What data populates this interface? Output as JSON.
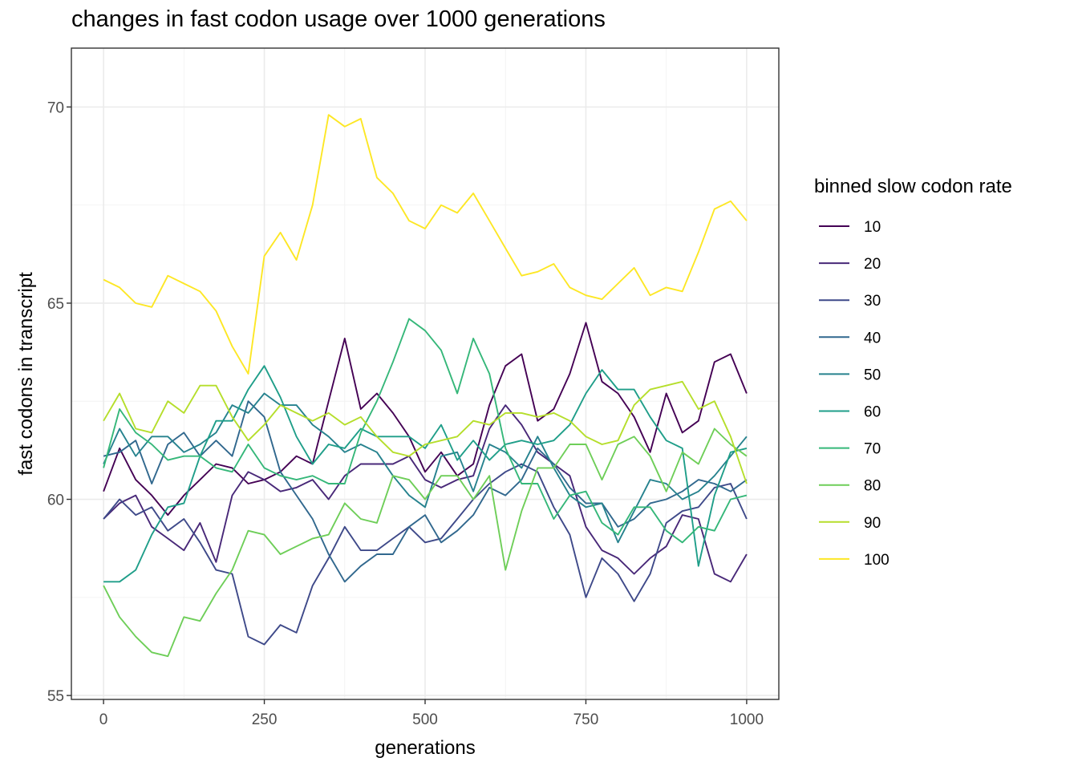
{
  "chart_data": {
    "type": "line",
    "title": "changes in fast codon usage over 1000 generations",
    "xlabel": "generations",
    "ylabel": "fast codons in transcript",
    "xlim": [
      -50,
      1050
    ],
    "ylim": [
      54.9,
      71.5
    ],
    "x_ticks": [
      0,
      250,
      500,
      750,
      1000
    ],
    "y_ticks": [
      55,
      60,
      65,
      70
    ],
    "grid": true,
    "legend": {
      "title": "binned slow codon rate",
      "placement": "right"
    },
    "x": [
      0,
      25,
      50,
      75,
      100,
      125,
      150,
      175,
      200,
      225,
      250,
      275,
      300,
      325,
      350,
      375,
      400,
      425,
      450,
      475,
      500,
      525,
      550,
      575,
      600,
      625,
      650,
      675,
      700,
      725,
      750,
      775,
      800,
      825,
      850,
      875,
      900,
      925,
      950,
      975,
      1000
    ],
    "series": [
      {
        "name": "10",
        "color": "#440154",
        "values": [
          60.2,
          61.3,
          60.5,
          60.1,
          59.6,
          60.1,
          60.5,
          60.9,
          60.8,
          60.4,
          60.5,
          60.7,
          61.1,
          60.9,
          62.5,
          64.1,
          62.3,
          62.7,
          62.2,
          61.6,
          60.7,
          61.2,
          60.6,
          60.9,
          62.4,
          63.4,
          63.7,
          62.0,
          62.3,
          63.2,
          64.5,
          63.0,
          62.7,
          62.1,
          61.2,
          62.7,
          61.7,
          62.0,
          63.5,
          63.7,
          62.7
        ]
      },
      {
        "name": "20",
        "color": "#482878",
        "values": [
          59.5,
          59.9,
          60.1,
          59.3,
          59.0,
          58.7,
          59.4,
          58.4,
          60.1,
          60.7,
          60.5,
          60.2,
          60.3,
          60.5,
          60.0,
          60.6,
          60.9,
          60.9,
          60.9,
          61.1,
          60.5,
          60.3,
          60.5,
          60.6,
          61.8,
          62.4,
          61.9,
          61.2,
          60.9,
          60.6,
          59.3,
          58.7,
          58.5,
          58.1,
          58.5,
          58.8,
          59.6,
          59.5,
          58.1,
          57.9,
          58.6
        ]
      },
      {
        "name": "30",
        "color": "#3e4989",
        "values": [
          59.5,
          60.0,
          59.6,
          59.8,
          59.2,
          59.5,
          58.9,
          58.2,
          58.1,
          56.5,
          56.3,
          56.8,
          56.6,
          57.8,
          58.5,
          59.3,
          58.7,
          58.7,
          59.0,
          59.3,
          58.9,
          59.0,
          59.5,
          60.0,
          60.4,
          60.7,
          60.9,
          60.7,
          59.8,
          59.1,
          57.5,
          58.5,
          58.1,
          57.4,
          58.1,
          59.4,
          59.7,
          59.8,
          60.3,
          60.4,
          59.5
        ]
      },
      {
        "name": "40",
        "color": "#31688e",
        "values": [
          61.1,
          61.2,
          61.5,
          60.4,
          61.4,
          61.7,
          61.1,
          61.5,
          61.1,
          62.5,
          62.1,
          60.7,
          60.1,
          59.5,
          58.6,
          57.9,
          58.3,
          58.6,
          58.6,
          59.3,
          59.6,
          58.9,
          59.2,
          59.6,
          60.3,
          60.1,
          60.5,
          61.3,
          60.9,
          60.3,
          59.9,
          59.9,
          59.3,
          59.5,
          59.9,
          60.0,
          60.2,
          60.5,
          60.4,
          60.2,
          60.5
        ]
      },
      {
        "name": "50",
        "color": "#26828e",
        "values": [
          60.9,
          61.8,
          61.1,
          61.6,
          61.6,
          61.2,
          61.4,
          61.7,
          62.4,
          62.2,
          62.7,
          62.4,
          62.4,
          61.9,
          61.6,
          61.2,
          61.4,
          61.2,
          60.6,
          60.1,
          59.8,
          61.1,
          61.2,
          60.2,
          61.4,
          61.2,
          60.8,
          61.6,
          60.8,
          60.1,
          59.8,
          59.9,
          58.9,
          59.7,
          60.5,
          60.4,
          60.0,
          60.2,
          60.6,
          61.1,
          61.6
        ]
      },
      {
        "name": "60",
        "color": "#1f9e89",
        "values": [
          57.9,
          57.9,
          58.2,
          59.1,
          59.8,
          59.9,
          61.1,
          62.0,
          62.0,
          62.8,
          63.4,
          62.6,
          61.6,
          60.9,
          61.4,
          61.3,
          61.8,
          61.6,
          61.6,
          61.6,
          61.3,
          61.9,
          61.0,
          61.5,
          61.0,
          61.4,
          61.5,
          61.4,
          61.5,
          61.9,
          62.7,
          63.3,
          62.8,
          62.8,
          62.1,
          61.5,
          61.3,
          58.3,
          60.1,
          61.2,
          61.3
        ]
      },
      {
        "name": "70",
        "color": "#35b779",
        "values": [
          60.8,
          62.3,
          61.7,
          61.4,
          61.0,
          61.1,
          61.1,
          60.8,
          60.7,
          61.4,
          60.8,
          60.6,
          60.5,
          60.6,
          60.4,
          60.4,
          61.7,
          62.5,
          63.5,
          64.6,
          64.3,
          63.8,
          62.7,
          64.1,
          63.2,
          61.3,
          60.4,
          60.4,
          59.5,
          60.1,
          60.2,
          59.4,
          59.1,
          59.8,
          59.8,
          59.2,
          58.9,
          59.3,
          59.2,
          60.0,
          60.1
        ]
      },
      {
        "name": "80",
        "color": "#6ece58",
        "values": [
          57.8,
          57.0,
          56.5,
          56.1,
          56.0,
          57.0,
          56.9,
          57.6,
          58.2,
          59.2,
          59.1,
          58.6,
          58.8,
          59.0,
          59.1,
          59.9,
          59.5,
          59.4,
          60.6,
          60.5,
          60.0,
          60.6,
          60.6,
          60.0,
          60.6,
          58.2,
          59.7,
          60.8,
          60.8,
          61.4,
          61.4,
          60.5,
          61.4,
          61.6,
          61.1,
          60.2,
          61.2,
          60.9,
          61.8,
          61.4,
          61.1
        ]
      },
      {
        "name": "90",
        "color": "#b5de2b",
        "values": [
          62.0,
          62.7,
          61.8,
          61.7,
          62.5,
          62.2,
          62.9,
          62.9,
          62.1,
          61.5,
          61.9,
          62.4,
          62.2,
          62.0,
          62.2,
          61.9,
          62.1,
          61.6,
          61.2,
          61.1,
          61.4,
          61.5,
          61.6,
          62.0,
          61.9,
          62.2,
          62.2,
          62.1,
          62.2,
          62.0,
          61.6,
          61.4,
          61.5,
          62.4,
          62.8,
          62.9,
          63.0,
          62.3,
          62.5,
          61.6,
          60.4
        ]
      },
      {
        "name": "100",
        "color": "#fde725",
        "values": [
          65.6,
          65.4,
          65.0,
          64.9,
          65.7,
          65.5,
          65.3,
          64.8,
          63.9,
          63.2,
          66.2,
          66.8,
          66.1,
          67.5,
          69.8,
          69.5,
          69.7,
          68.2,
          67.8,
          67.1,
          66.9,
          67.5,
          67.3,
          67.8,
          67.1,
          66.4,
          65.7,
          65.8,
          66.0,
          65.4,
          65.2,
          65.1,
          65.5,
          65.9,
          65.2,
          65.4,
          65.3,
          66.3,
          67.4,
          67.6,
          67.1
        ]
      }
    ]
  }
}
